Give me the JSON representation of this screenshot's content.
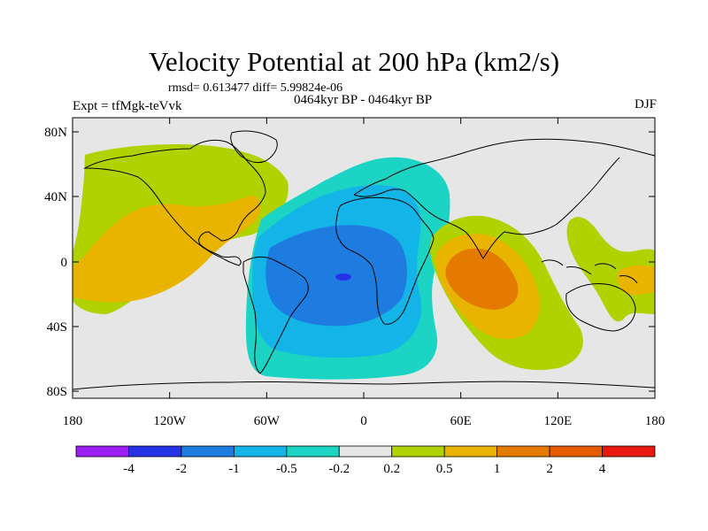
{
  "title": "Velocity Potential at 200 hPa (km2/s)",
  "stats": "rmsd= 0.613477 diff= 5.99824e-06",
  "experiment": "Expt = tfMgk-teVvk",
  "period": "0464kyr BP - 0464kyr BP",
  "season": "DJF",
  "lat_labels": [
    "80N",
    "40N",
    "0",
    "40S",
    "80S"
  ],
  "lon_labels": [
    "180",
    "120W",
    "60W",
    "0",
    "60E",
    "120E",
    "180"
  ],
  "colorbar": {
    "colors": [
      "#9b1ff0",
      "#2632e6",
      "#1e7be0",
      "#13b5e8",
      "#1bd4c4",
      "#e6e6e6",
      "#b0d200",
      "#e8b400",
      "#e47b00",
      "#e65a00",
      "#e81a10"
    ],
    "labels": [
      "-4",
      "-2",
      "-1",
      "-0.5",
      "-0.2",
      "0.2",
      "0.5",
      "1",
      "2",
      "4"
    ]
  },
  "colors": {
    "land_ocean_background": "#e6e6e6",
    "coastline": "#000000"
  }
}
